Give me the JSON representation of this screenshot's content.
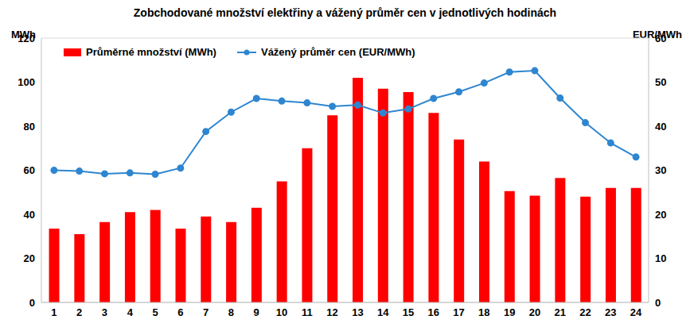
{
  "chart_data": {
    "type": "bar",
    "title": "Zobchodované množství elektřiny a vážený průměr cen v jednotlivých hodinách",
    "categories": [
      "1",
      "2",
      "3",
      "4",
      "5",
      "6",
      "7",
      "8",
      "9",
      "10",
      "11",
      "12",
      "13",
      "14",
      "15",
      "16",
      "17",
      "18",
      "19",
      "20",
      "21",
      "22",
      "23",
      "24"
    ],
    "series": [
      {
        "name": "Průměrné množství (MWh)",
        "type": "bar",
        "color": "#ff0000",
        "values": [
          33.5,
          31,
          36.5,
          41,
          42,
          33.5,
          39,
          36.5,
          43,
          55,
          70,
          85,
          102,
          97,
          95.5,
          86,
          74,
          64,
          50.5,
          48.5,
          56.5,
          48,
          52,
          52
        ]
      },
      {
        "name": "Vážený průměr cen (EUR/MWh)",
        "type": "line",
        "color": "#2e86d0",
        "marker": "circle",
        "axis": "y2",
        "values": [
          30,
          29.8,
          29.2,
          29.4,
          29.1,
          30.5,
          38.8,
          43.2,
          46.3,
          45.7,
          45.3,
          44.5,
          44.8,
          43,
          43.9,
          46.3,
          47.8,
          49.8,
          52.3,
          52.6,
          46.4,
          40.8,
          36.2,
          33
        ]
      }
    ],
    "ylabel": "MWh",
    "y2label": "EUR/MWh",
    "ylim": [
      0,
      120
    ],
    "yticks": [
      0,
      20,
      40,
      60,
      80,
      100,
      120
    ],
    "y2lim": [
      0,
      60
    ],
    "y2ticks": [
      0,
      10,
      20,
      30,
      40,
      50,
      60
    ],
    "grid": true,
    "legend": "upper left"
  }
}
